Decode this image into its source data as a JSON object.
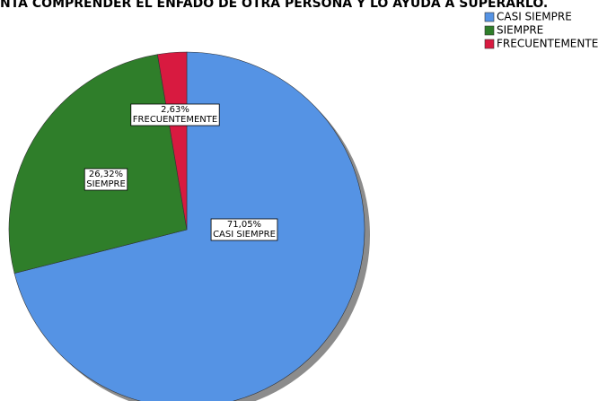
{
  "chart_data": {
    "type": "pie",
    "title": "NTA COMPRENDER EL ENFADO DE OTRA PERSONA Y LO AYUDA A SUPERARLO.",
    "categories": [
      "CASI SIEMPRE",
      "SIEMPRE",
      "FRECUENTEMENTE"
    ],
    "values": [
      71.05,
      26.32,
      2.63
    ],
    "value_labels": [
      "71,05%",
      "26,32%",
      "2,63%"
    ],
    "colors": [
      "#5593e4",
      "#2f7e2a",
      "#d81a40"
    ],
    "legend": "upper right"
  }
}
